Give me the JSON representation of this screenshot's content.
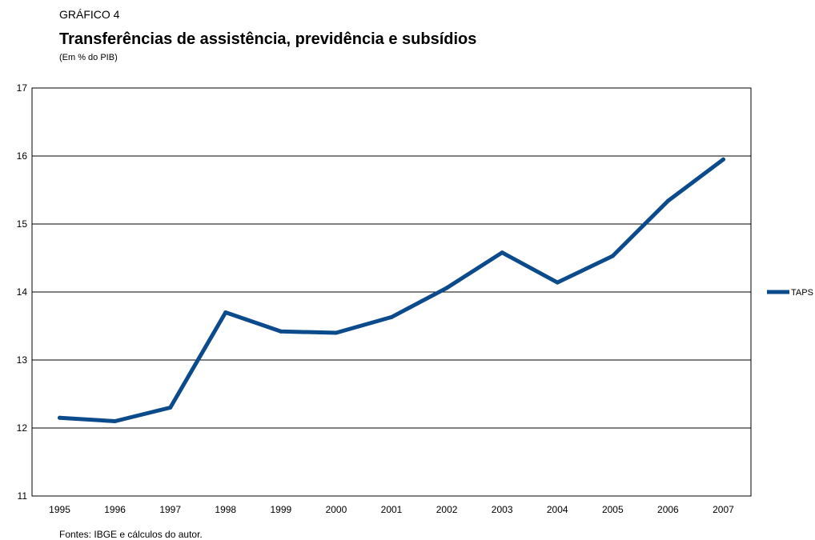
{
  "header": {
    "label": "GRÁFICO 4",
    "title": "Transferências de assistência, previdência e subsídios",
    "unit": "(Em % do PIB)"
  },
  "footer": {
    "source": "Fontes: IBGE e cálculos do autor."
  },
  "colors": {
    "series": "#0b4a8b",
    "axis": "#000000",
    "grid": "#000000"
  },
  "chart_data": {
    "type": "line",
    "title": "Transferências de assistência, previdência e subsídios",
    "subtitle": "(Em % do PIB)",
    "xlabel": "",
    "ylabel": "",
    "x": [
      "1995",
      "1996",
      "1997",
      "1998",
      "1999",
      "2000",
      "2001",
      "2002",
      "2003",
      "2004",
      "2005",
      "2006",
      "2007"
    ],
    "series": [
      {
        "name": "TAPS",
        "values": [
          12.15,
          12.1,
          12.3,
          13.7,
          13.42,
          13.4,
          13.63,
          14.06,
          14.58,
          14.14,
          14.53,
          15.34,
          15.95
        ]
      }
    ],
    "ylim": [
      11,
      17
    ],
    "yticks": [
      11,
      12,
      13,
      14,
      15,
      16,
      17
    ],
    "grid": "horizontal",
    "legend": "right"
  }
}
